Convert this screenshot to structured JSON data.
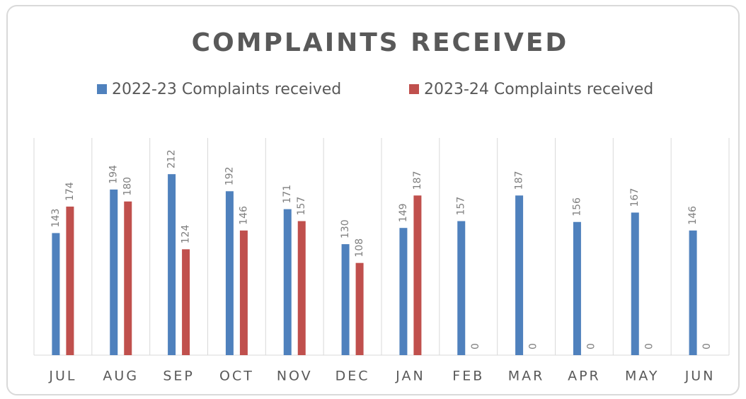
{
  "chart_data": {
    "type": "bar",
    "title": "COMPLAINTS RECEIVED",
    "categories": [
      "JUL",
      "AUG",
      "SEP",
      "OCT",
      "NOV",
      "DEC",
      "JAN",
      "FEB",
      "MAR",
      "APR",
      "MAY",
      "JUN"
    ],
    "series": [
      {
        "name": "2022-23 Complaints received",
        "color": "#4f81bd",
        "values": [
          143,
          194,
          212,
          192,
          171,
          130,
          149,
          157,
          187,
          156,
          167,
          146
        ]
      },
      {
        "name": "2023-24 Complaints received",
        "color": "#c0504d",
        "values": [
          174,
          180,
          124,
          146,
          157,
          108,
          187,
          0,
          0,
          0,
          0,
          0
        ]
      }
    ],
    "grid": true
  }
}
